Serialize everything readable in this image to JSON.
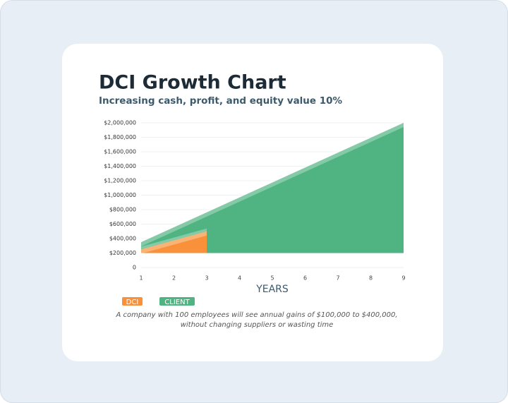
{
  "chart_data": {
    "type": "area",
    "title": "DCI Growth Chart",
    "subtitle": "Increasing cash, profit, and equity value 10%",
    "xlabel": "YEARS",
    "xlim": [
      1,
      9
    ],
    "xticks": [
      1,
      2,
      3,
      4,
      5,
      6,
      7,
      8,
      9
    ],
    "ylim": [
      0,
      2000000
    ],
    "yticks": [
      0,
      {
        "value": 200000,
        "label": "$200,000"
      },
      {
        "value": 400000,
        "label": "$400,000"
      },
      {
        "value": 600000,
        "label": "$600,000"
      },
      {
        "value": 800000,
        "label": "$800,000"
      },
      {
        "value": 1000000,
        "label": "$1,000,000"
      },
      {
        "value": 1200000,
        "label": "$1,200,000"
      },
      {
        "value": 1400000,
        "label": "$1,400,000"
      },
      {
        "value": 1600000,
        "label": "$1,600,000"
      },
      {
        "value": 1800000,
        "label": "$1,800,000"
      },
      {
        "value": 2000000,
        "label": "$2,000,000"
      }
    ],
    "grid": true,
    "area_base": 200000,
    "series": [
      {
        "name": "CLIENT",
        "color": "#4fb382",
        "x": [
          1,
          9
        ],
        "values": [
          350000,
          2000000
        ]
      },
      {
        "name": "DCI",
        "color": "#f8913a",
        "x": [
          1,
          3
        ],
        "values": [
          250000,
          500000
        ]
      }
    ],
    "legend_order": [
      "DCI",
      "CLIENT"
    ],
    "annotations": [
      "A company with 100 employees will see annual gains of $100,000 to $400,000,",
      "without changing suppliers or wasting time"
    ]
  }
}
